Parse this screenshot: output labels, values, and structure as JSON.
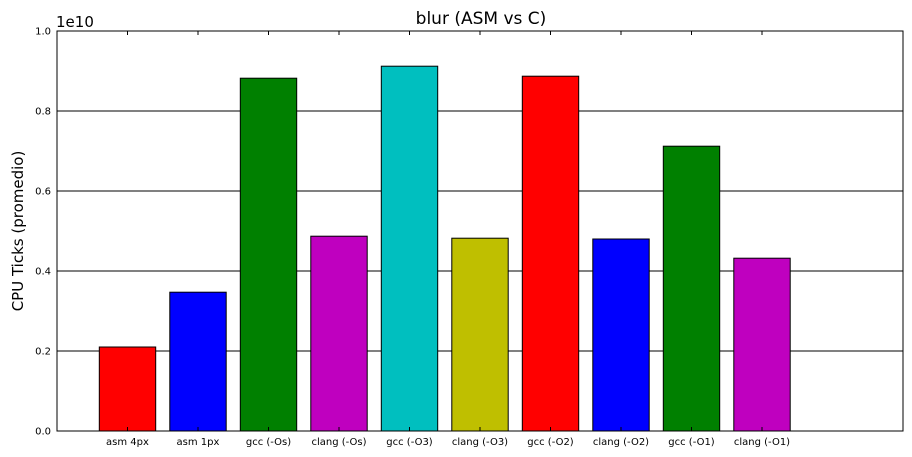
{
  "chart_data": {
    "type": "bar",
    "title": "blur (ASM vs C)",
    "xlabel": "",
    "ylabel": "CPU Ticks (promedio)",
    "y_offset_label": "1e10",
    "y_scale": 10000000000.0,
    "ylim": [
      0,
      10000000000.0
    ],
    "yticks": [
      0,
      0.2,
      0.4,
      0.6,
      0.8,
      1.0
    ],
    "ytick_labels": [
      "0.0",
      "0.2",
      "0.4",
      "0.6",
      "0.8",
      "1.0"
    ],
    "x_range_slots": 12,
    "grid": "horizontal",
    "categories": [
      "asm 4px",
      "asm 1px",
      "gcc (-Os)",
      "clang (-Os)",
      "gcc (-O3)",
      "clang (-O3)",
      "gcc (-O2)",
      "clang (-O2)",
      "gcc (-O1)",
      "clang (-O1)"
    ],
    "values": [
      2100000000.0,
      3470000000.0,
      8820000000.0,
      4870000000.0,
      9120000000.0,
      4820000000.0,
      8870000000.0,
      4800000000.0,
      7120000000.0,
      4320000000.0
    ],
    "colors": [
      "#ff0000",
      "#0000ff",
      "#008000",
      "#bf00bf",
      "#00bfbf",
      "#bfbf00",
      "#ff0000",
      "#0000ff",
      "#008000",
      "#bf00bf"
    ]
  }
}
